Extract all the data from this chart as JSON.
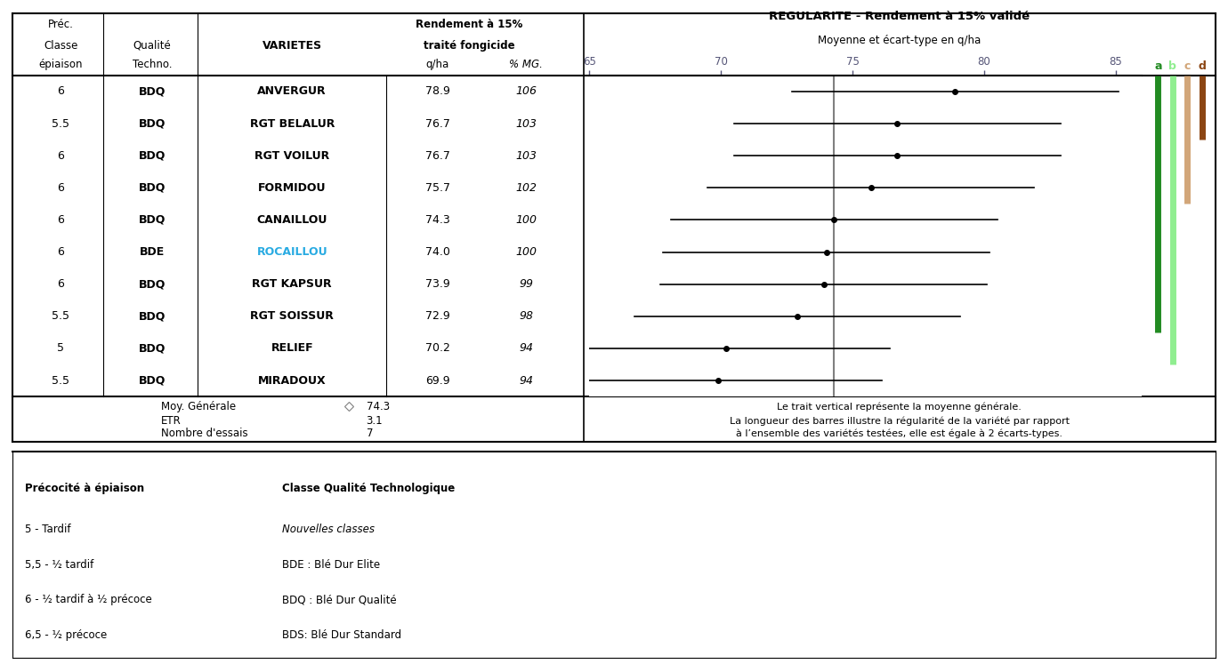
{
  "varieties": [
    "ANVERGUR",
    "RGT BELALUR",
    "RGT VOILUR",
    "FORMIDOU",
    "CANAILLOU",
    "ROCAILLOU",
    "RGT KAPSUR",
    "RGT SOISSUR",
    "RELIEF",
    "MIRADOUX"
  ],
  "prec_epiaison": [
    "6",
    "5.5",
    "6",
    "6",
    "6",
    "6",
    "6",
    "5.5",
    "5",
    "5.5"
  ],
  "classe_qualite": [
    "BDQ",
    "BDQ",
    "BDQ",
    "BDQ",
    "BDQ",
    "BDE",
    "BDQ",
    "BDQ",
    "BDQ",
    "BDQ"
  ],
  "qha": [
    78.9,
    76.7,
    76.7,
    75.7,
    74.3,
    74.0,
    73.9,
    72.9,
    70.2,
    69.9
  ],
  "pct_mg": [
    "106",
    "103",
    "103",
    "102",
    "100",
    "100",
    "99",
    "98",
    "94",
    "94"
  ],
  "rocaillou_color": "#29ABE2",
  "mean_general": 74.3,
  "etr": 3.1,
  "n_essais": 7,
  "xmin": 65,
  "xmax": 86,
  "xticks": [
    65,
    70,
    75,
    80,
    85
  ],
  "ebar_half": 6.2,
  "bar_colors": [
    "#228B22",
    "#90EE90",
    "#D2A679",
    "#8B4513"
  ],
  "bar_labels": [
    "a",
    "b",
    "c",
    "d"
  ],
  "title_right": "REGULARITE - Rendement à 15% validé",
  "subtitle_right": "Moyenne et écart-type en q/ha",
  "footnote_line1": "Le trait vertical représente la moyenne générale.",
  "footnote_line2": "La longueur des barres illustre la régularité de la variété par rapport",
  "footnote_line3": "à l’ensemble des variétés testées, elle est égale à 2 écarts-types.",
  "legend_prec_title": "Précocité à épiaison",
  "legend_prec_items": [
    "5 - Tardif",
    "5,5 - ½ tardif",
    "6 - ½ tardif à ½ précoce",
    "6,5 - ½ précoce"
  ],
  "legend_qual_title": "Classe Qualité Technologique",
  "legend_qual_items": [
    "Nouvelles classes",
    "BDE : Blé Dur Elite",
    "BDQ : Blé Dur Qualité",
    "BDS: Blé Dur Standard"
  ],
  "legend_qual_styles": [
    "italic",
    "normal",
    "normal",
    "normal"
  ]
}
